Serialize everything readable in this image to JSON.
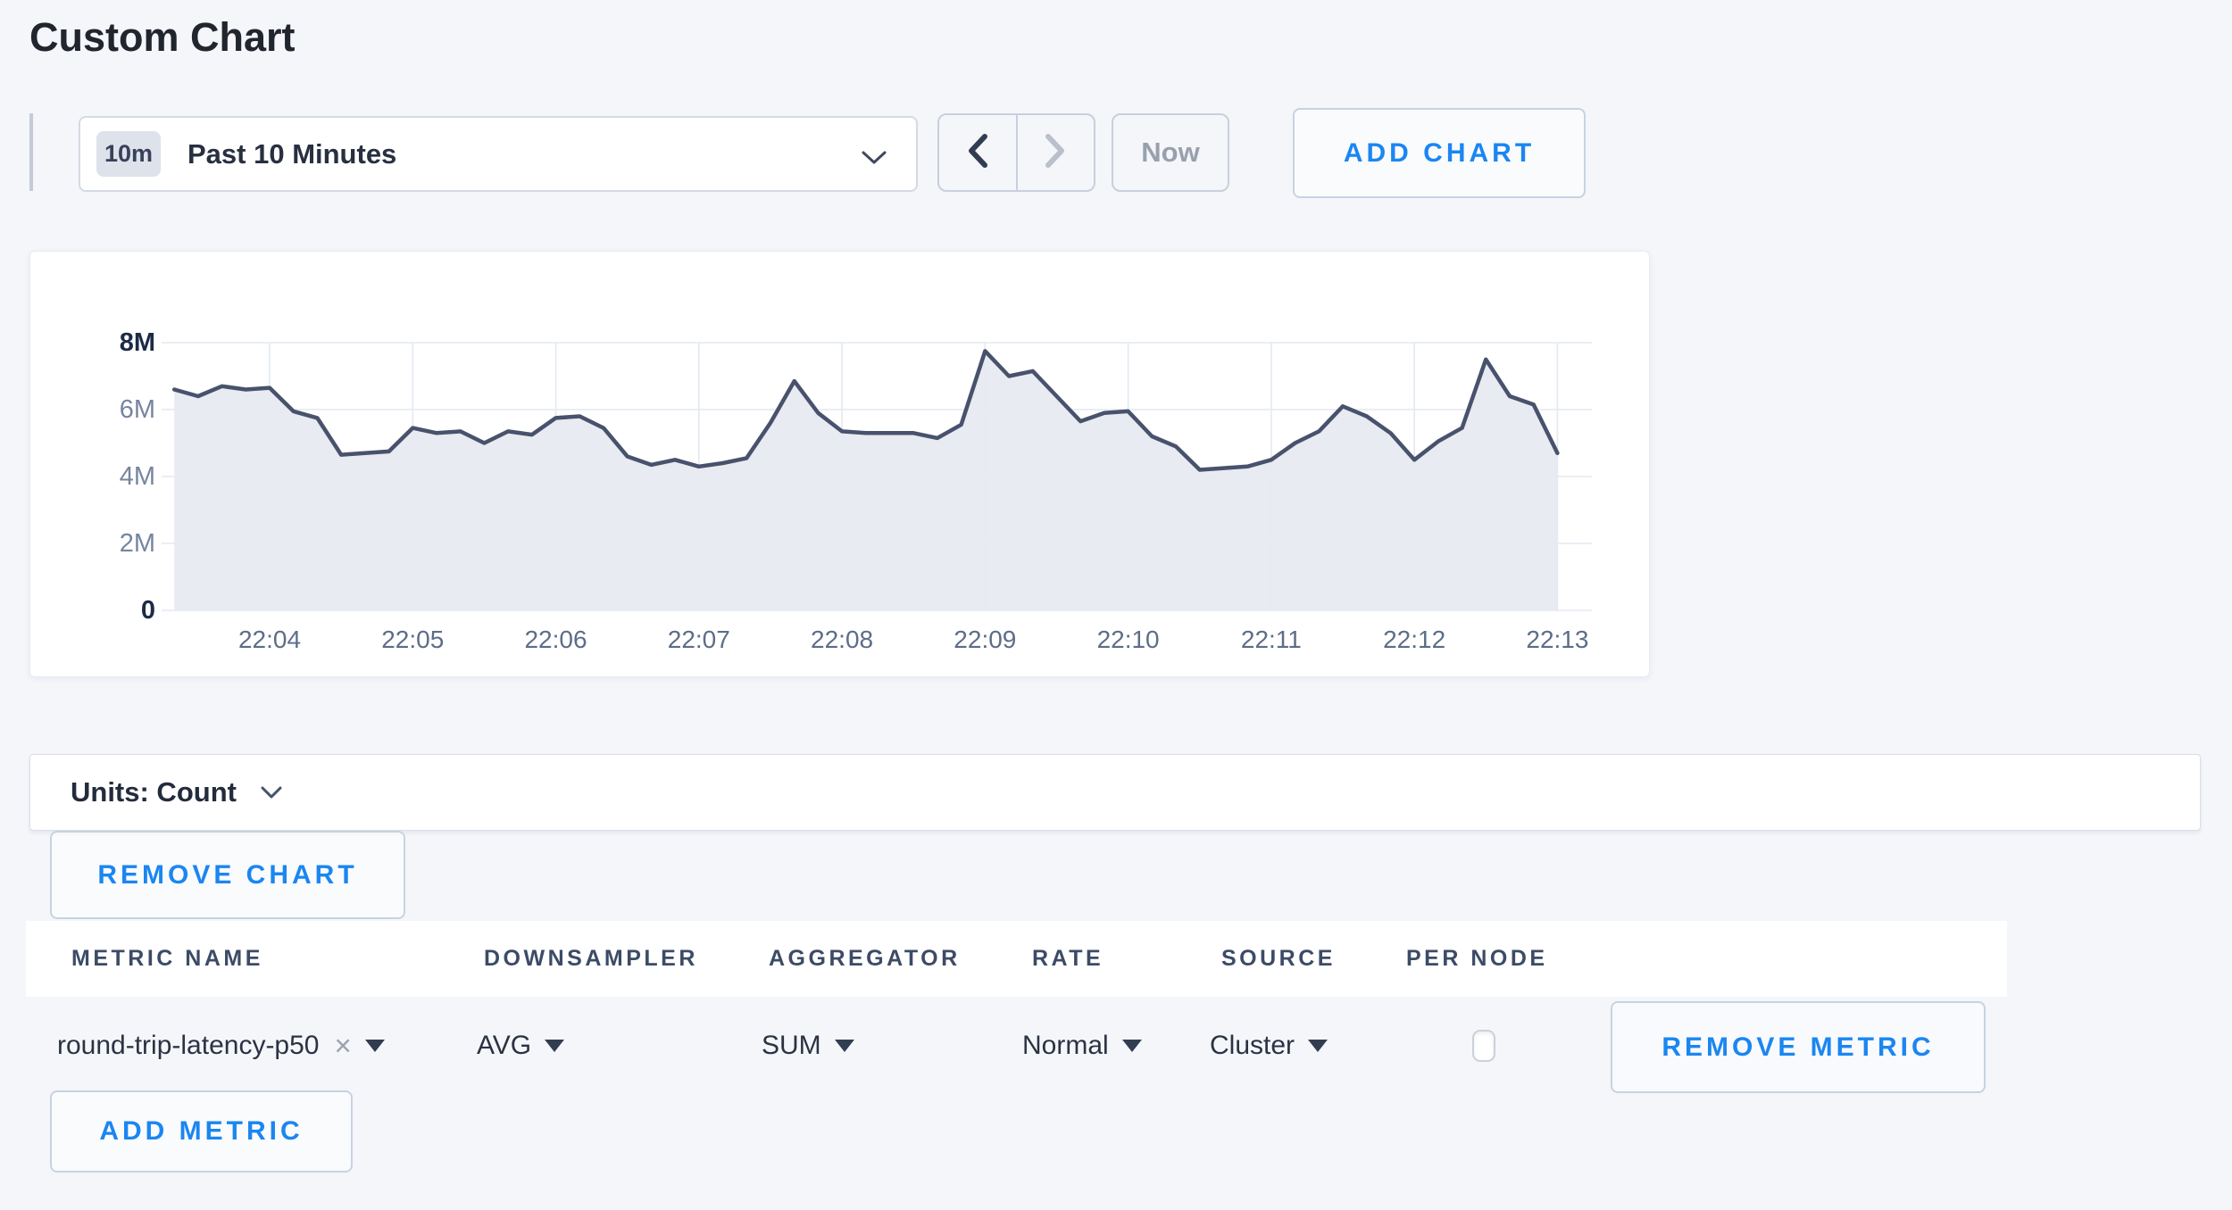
{
  "page": {
    "title": "Custom Chart"
  },
  "toolbar": {
    "time_window_badge": "10m",
    "time_window_label": "Past 10 Minutes",
    "now_label": "Now",
    "add_chart_label": "ADD CHART"
  },
  "chart_data": {
    "type": "area",
    "title": "",
    "xlabel": "",
    "ylabel": "",
    "x_start": "22:03:20",
    "interval_seconds": 10,
    "x_ticks": [
      "22:04",
      "22:05",
      "22:06",
      "22:07",
      "22:08",
      "22:09",
      "22:10",
      "22:11",
      "22:12",
      "22:13"
    ],
    "y_ticks": [
      "0",
      "2M",
      "4M",
      "6M",
      "8M"
    ],
    "ylim": [
      0,
      8000000
    ],
    "grid": true,
    "legend": "none",
    "values_millions": [
      6.6,
      6.4,
      6.7,
      6.6,
      6.65,
      5.95,
      5.75,
      4.65,
      4.7,
      4.75,
      5.45,
      5.3,
      5.35,
      5.0,
      5.35,
      5.25,
      5.75,
      5.8,
      5.45,
      4.6,
      4.35,
      4.5,
      4.3,
      4.4,
      4.55,
      5.6,
      6.85,
      5.9,
      5.35,
      5.3,
      5.3,
      5.3,
      5.15,
      5.55,
      7.75,
      7.0,
      7.15,
      6.4,
      5.65,
      5.9,
      5.95,
      5.2,
      4.9,
      4.2,
      4.25,
      4.3,
      4.5,
      5.0,
      5.35,
      6.1,
      5.8,
      5.3,
      4.5,
      5.05,
      5.45,
      7.5,
      6.4,
      6.15,
      4.7
    ]
  },
  "units_bar": {
    "label": "Units: Count"
  },
  "chart_actions": {
    "remove_chart_label": "REMOVE CHART",
    "add_metric_label": "ADD METRIC"
  },
  "metrics_table": {
    "headers": [
      "METRIC NAME",
      "DOWNSAMPLER",
      "AGGREGATOR",
      "RATE",
      "SOURCE",
      "PER NODE"
    ],
    "row": {
      "metric_name": "round-trip-latency-p50",
      "remove_tag_icon": "×",
      "downsampler": "AVG",
      "aggregator": "SUM",
      "rate": "Normal",
      "source": "Cluster",
      "per_node_checked": false,
      "remove_metric_label": "REMOVE METRIC"
    }
  },
  "colors": {
    "accent_blue": "#1b86f1",
    "line": "#48526d",
    "fill": "#e8eaf1",
    "grid": "#e3e9f1",
    "page_bg": "#f4f6fa",
    "card_bg": "#ffffff"
  }
}
